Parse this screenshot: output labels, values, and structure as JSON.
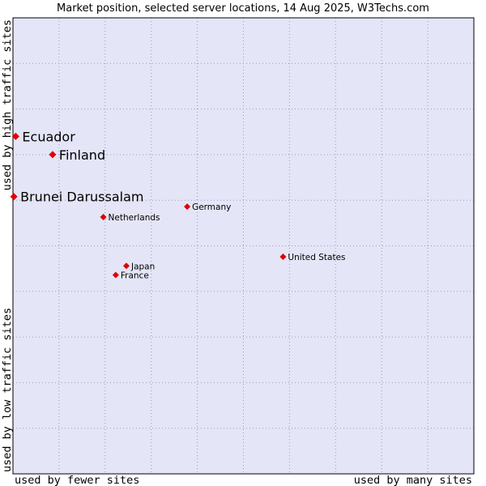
{
  "chart_data": {
    "type": "scatter",
    "title": "Market position, selected server locations, 14 Aug 2025, W3Techs.com",
    "xlabel_left": "used by fewer sites",
    "xlabel_right": "used by many sites",
    "ylabel_top": "used by high traffic sites",
    "ylabel_bottom": "used by low traffic sites",
    "xlim": [
      0,
      100
    ],
    "ylim": [
      0,
      100
    ],
    "grid": true,
    "colors": {
      "plot_background": "#e5e5f8",
      "grid": "#9a9aba",
      "border": "#000000",
      "marker": "#e00000"
    },
    "points": [
      {
        "name": "Ecuador",
        "x": 0.6,
        "y": 74.0,
        "size": "large"
      },
      {
        "name": "Finland",
        "x": 8.6,
        "y": 70.0,
        "size": "large"
      },
      {
        "name": "Brunei Darussalam",
        "x": 0.2,
        "y": 60.8,
        "size": "large"
      },
      {
        "name": "Germany",
        "x": 37.8,
        "y": 58.6,
        "size": "small"
      },
      {
        "name": "Netherlands",
        "x": 19.6,
        "y": 56.3,
        "size": "small"
      },
      {
        "name": "United States",
        "x": 58.6,
        "y": 47.6,
        "size": "small"
      },
      {
        "name": "Japan",
        "x": 24.6,
        "y": 45.6,
        "size": "small"
      },
      {
        "name": "France",
        "x": 22.3,
        "y": 43.6,
        "size": "small"
      }
    ]
  }
}
